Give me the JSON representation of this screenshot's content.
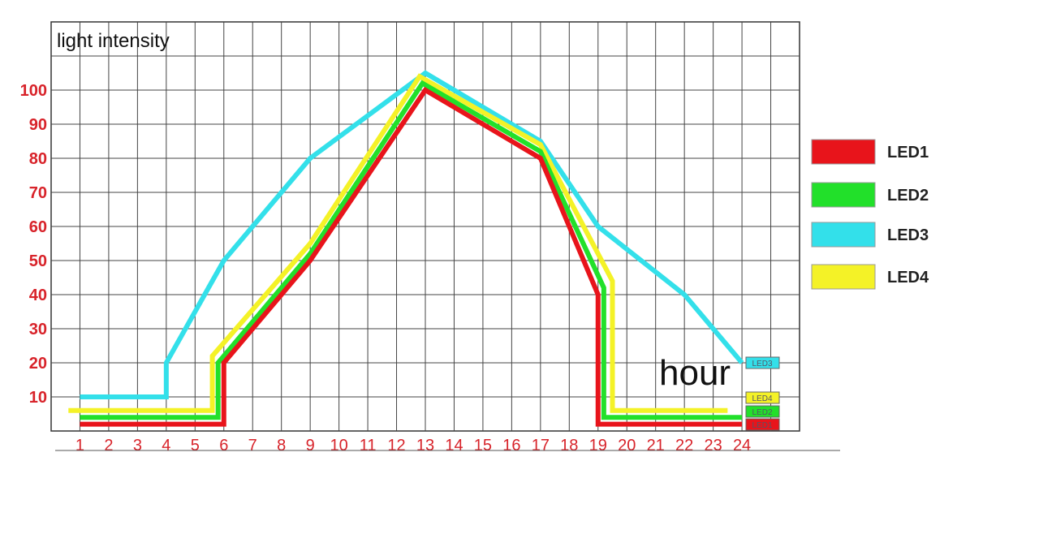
{
  "chart_data": {
    "type": "line",
    "title": "light intensity",
    "xlabel": "hour",
    "ylabel": "",
    "x_ticks": [
      1,
      2,
      3,
      4,
      5,
      6,
      7,
      8,
      9,
      10,
      11,
      12,
      13,
      14,
      15,
      16,
      17,
      18,
      19,
      20,
      21,
      22,
      23,
      24
    ],
    "y_ticks": [
      10,
      20,
      30,
      40,
      50,
      60,
      70,
      80,
      90,
      100
    ],
    "xlim": [
      0,
      26
    ],
    "ylim": [
      0,
      120
    ],
    "grid": true,
    "legend_position": "right",
    "series": [
      {
        "name": "LED1",
        "end_label": "LED1",
        "color": "#e8141b",
        "points": [
          [
            1,
            2
          ],
          [
            6,
            2
          ],
          [
            6,
            20
          ],
          [
            9,
            50
          ],
          [
            13,
            100
          ],
          [
            17,
            80
          ],
          [
            19,
            40
          ],
          [
            19,
            2
          ],
          [
            24,
            2
          ]
        ]
      },
      {
        "name": "LED2",
        "end_label": "LED2",
        "color": "#22e02a",
        "points": [
          [
            1,
            4
          ],
          [
            5.8,
            4
          ],
          [
            5.8,
            20
          ],
          [
            9,
            52
          ],
          [
            12.9,
            102
          ],
          [
            17,
            82
          ],
          [
            19.2,
            42
          ],
          [
            19.2,
            4
          ],
          [
            24,
            4
          ]
        ]
      },
      {
        "name": "LED3",
        "end_label": "LED3",
        "color": "#33e0ea",
        "points": [
          [
            1,
            10
          ],
          [
            4,
            10
          ],
          [
            4,
            20
          ],
          [
            6,
            50
          ],
          [
            9,
            80
          ],
          [
            13,
            105
          ],
          [
            17,
            85
          ],
          [
            19,
            60
          ],
          [
            22,
            40
          ],
          [
            24,
            20
          ]
        ]
      },
      {
        "name": "LED4",
        "end_label": "LED4",
        "color": "#f4f227",
        "points": [
          [
            0.6,
            6
          ],
          [
            5.6,
            6
          ],
          [
            5.6,
            22
          ],
          [
            9,
            55
          ],
          [
            12.8,
            104
          ],
          [
            17,
            84
          ],
          [
            19.5,
            44
          ],
          [
            19.5,
            6
          ],
          [
            23.5,
            6
          ]
        ]
      }
    ]
  }
}
